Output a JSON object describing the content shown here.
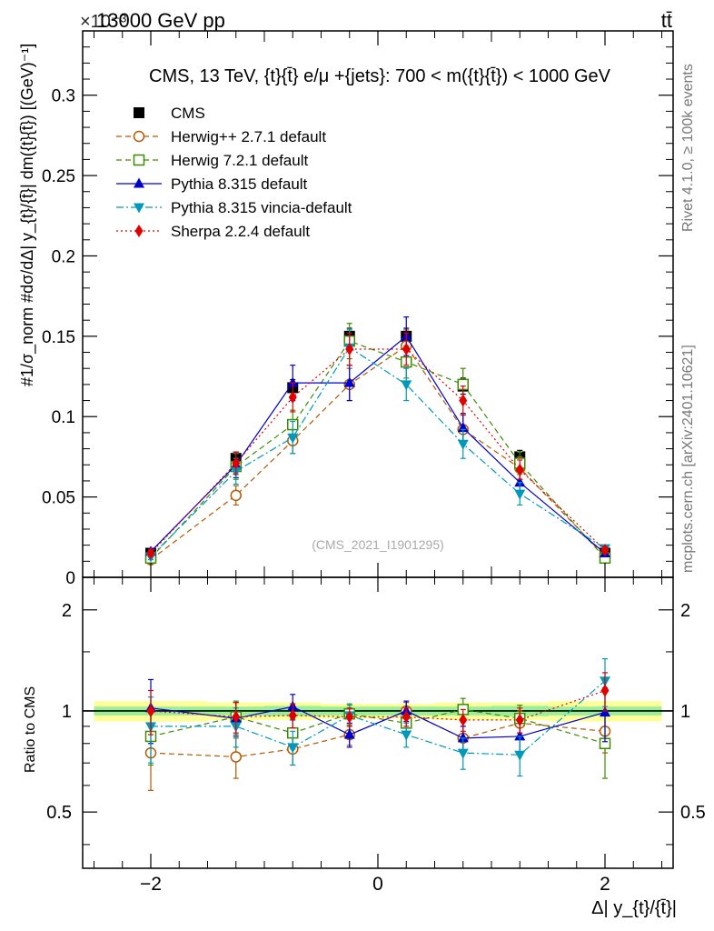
{
  "header": {
    "left": "13000 GeV pp",
    "right": "tt̄",
    "exponent": "×10⁻³"
  },
  "side_labels": {
    "rivet": "Rivet 4.1.0, ≥ 100k events",
    "mcplots": "mcplots.cern.ch [arXiv:2401.10621]"
  },
  "chart_data": [
    {
      "type": "line",
      "panel": "main",
      "title": "CMS, 13 TeV, {t}{t̄} e/μ +{jets}: 700 < m({t}{t̄}) < 1000 GeV",
      "watermark": "(CMS_2021_I1901295)",
      "ylabel": "#1/σ_norm #dσ/dΔ| y_{t}/{t̄}| dm({t}{t̄}) [(GeV)⁻¹]",
      "y_scale_note": "×10⁻³",
      "xlim": [
        -2.6,
        2.6
      ],
      "ylim": [
        0,
        0.34
      ],
      "yticks": [
        0,
        0.05,
        0.1,
        0.15,
        0.2,
        0.25,
        0.3
      ],
      "ytick_labels": [
        "0",
        "0.05",
        "0.1",
        "0.15",
        "0.2",
        "0.25",
        "0.3"
      ],
      "x": [
        -2.0,
        -1.25,
        -0.75,
        -0.25,
        0.25,
        0.75,
        1.25,
        2.0
      ],
      "series": [
        {
          "name": "CMS",
          "color": "#000000",
          "marker": "square-filled",
          "dash": "none",
          "values": [
            0.015,
            0.074,
            0.118,
            0.15,
            0.15,
            0.119,
            0.075,
            0.015
          ],
          "err": [
            0.001,
            0.004,
            0.005,
            0.005,
            0.005,
            0.005,
            0.004,
            0.001
          ]
        },
        {
          "name": "Herwig++ 2.7.1 default",
          "color": "#b35900",
          "marker": "circle-open",
          "dash": "6,4",
          "values": [
            0.011,
            0.051,
            0.085,
            0.12,
            0.144,
            0.092,
            0.068,
            0.013
          ],
          "err": [
            0.002,
            0.006,
            0.008,
            0.01,
            0.01,
            0.009,
            0.007,
            0.002
          ]
        },
        {
          "name": "Herwig 7.2.1 default",
          "color": "#3d8c00",
          "marker": "square-open",
          "dash": "6,4",
          "values": [
            0.012,
            0.069,
            0.095,
            0.147,
            0.134,
            0.12,
            0.071,
            0.012
          ],
          "err": [
            0.002,
            0.008,
            0.009,
            0.011,
            0.01,
            0.01,
            0.007,
            0.002
          ]
        },
        {
          "name": "Pythia 8.315 default",
          "color": "#0000cc",
          "marker": "triangle-up",
          "dash": "none",
          "values": [
            0.016,
            0.07,
            0.121,
            0.121,
            0.15,
            0.093,
            0.059,
            0.015
          ],
          "err": [
            0.002,
            0.008,
            0.011,
            0.011,
            0.012,
            0.009,
            0.007,
            0.002
          ]
        },
        {
          "name": "Pythia 8.315 vincia-default",
          "color": "#0099bb",
          "marker": "triangle-down",
          "dash": "8,3,2,3",
          "values": [
            0.013,
            0.066,
            0.087,
            0.143,
            0.12,
            0.083,
            0.052,
            0.018
          ],
          "err": [
            0.002,
            0.008,
            0.01,
            0.011,
            0.01,
            0.009,
            0.007,
            0.002
          ]
        },
        {
          "name": "Sherpa 2.2.4 default",
          "color": "#e00000",
          "marker": "diamond",
          "dash": "2,3",
          "values": [
            0.015,
            0.071,
            0.112,
            0.142,
            0.142,
            0.11,
            0.067,
            0.017
          ],
          "err": [
            0.002,
            0.007,
            0.009,
            0.01,
            0.01,
            0.009,
            0.006,
            0.002
          ]
        }
      ]
    },
    {
      "type": "line",
      "panel": "ratio",
      "ylabel": "Ratio to CMS",
      "xlabel": "Δ| y_{t}/{t̄}|",
      "xlim": [
        -2.6,
        2.6
      ],
      "ylim": [
        0.34,
        2.5
      ],
      "xticks": [
        -2,
        0,
        2
      ],
      "xtick_labels": [
        "−2",
        "0",
        "2"
      ],
      "yticks": [
        0.5,
        1,
        2
      ],
      "ytick_labels": [
        "0.5",
        "1",
        "2"
      ],
      "x": [
        -2.0,
        -1.25,
        -0.75,
        -0.25,
        0.25,
        0.75,
        1.25,
        2.0
      ],
      "band_edges": [
        -2.5,
        -1.5,
        -1.0,
        -0.5,
        0.0,
        0.5,
        1.0,
        1.5,
        2.5
      ],
      "band_inner": [
        0.03,
        0.03,
        0.035,
        0.03,
        0.03,
        0.03,
        0.035,
        0.03
      ],
      "band_outer": [
        0.07,
        0.06,
        0.06,
        0.05,
        0.05,
        0.06,
        0.06,
        0.07
      ],
      "series": [
        {
          "name": "Herwig++ 2.7.1 default",
          "values": [
            0.75,
            0.73,
            0.77,
            0.85,
            1.0,
            0.83,
            0.92,
            0.87
          ],
          "err": [
            0.17,
            0.1,
            0.08,
            0.06,
            0.06,
            0.07,
            0.08,
            0.12
          ]
        },
        {
          "name": "Herwig 7.2.1 default",
          "values": [
            0.84,
            0.96,
            0.86,
            0.98,
            0.92,
            1.01,
            0.95,
            0.8
          ],
          "err": [
            0.15,
            0.11,
            0.09,
            0.07,
            0.07,
            0.08,
            0.09,
            0.17
          ]
        },
        {
          "name": "Pythia 8.315 default",
          "values": [
            1.02,
            0.95,
            1.03,
            0.85,
            1.0,
            0.83,
            0.84,
            0.99
          ],
          "err": [
            0.22,
            0.11,
            0.09,
            0.07,
            0.07,
            0.07,
            0.09,
            0.18
          ]
        },
        {
          "name": "Pythia 8.315 vincia-default",
          "values": [
            0.9,
            0.9,
            0.78,
            0.97,
            0.85,
            0.75,
            0.74,
            1.23
          ],
          "err": [
            0.2,
            0.12,
            0.09,
            0.07,
            0.07,
            0.08,
            0.1,
            0.2
          ]
        },
        {
          "name": "Sherpa 2.2.4 default",
          "values": [
            1.0,
            0.96,
            0.97,
            0.96,
            0.96,
            0.94,
            0.94,
            1.15
          ],
          "err": [
            0.15,
            0.1,
            0.08,
            0.06,
            0.06,
            0.07,
            0.08,
            0.15
          ]
        }
      ]
    }
  ]
}
